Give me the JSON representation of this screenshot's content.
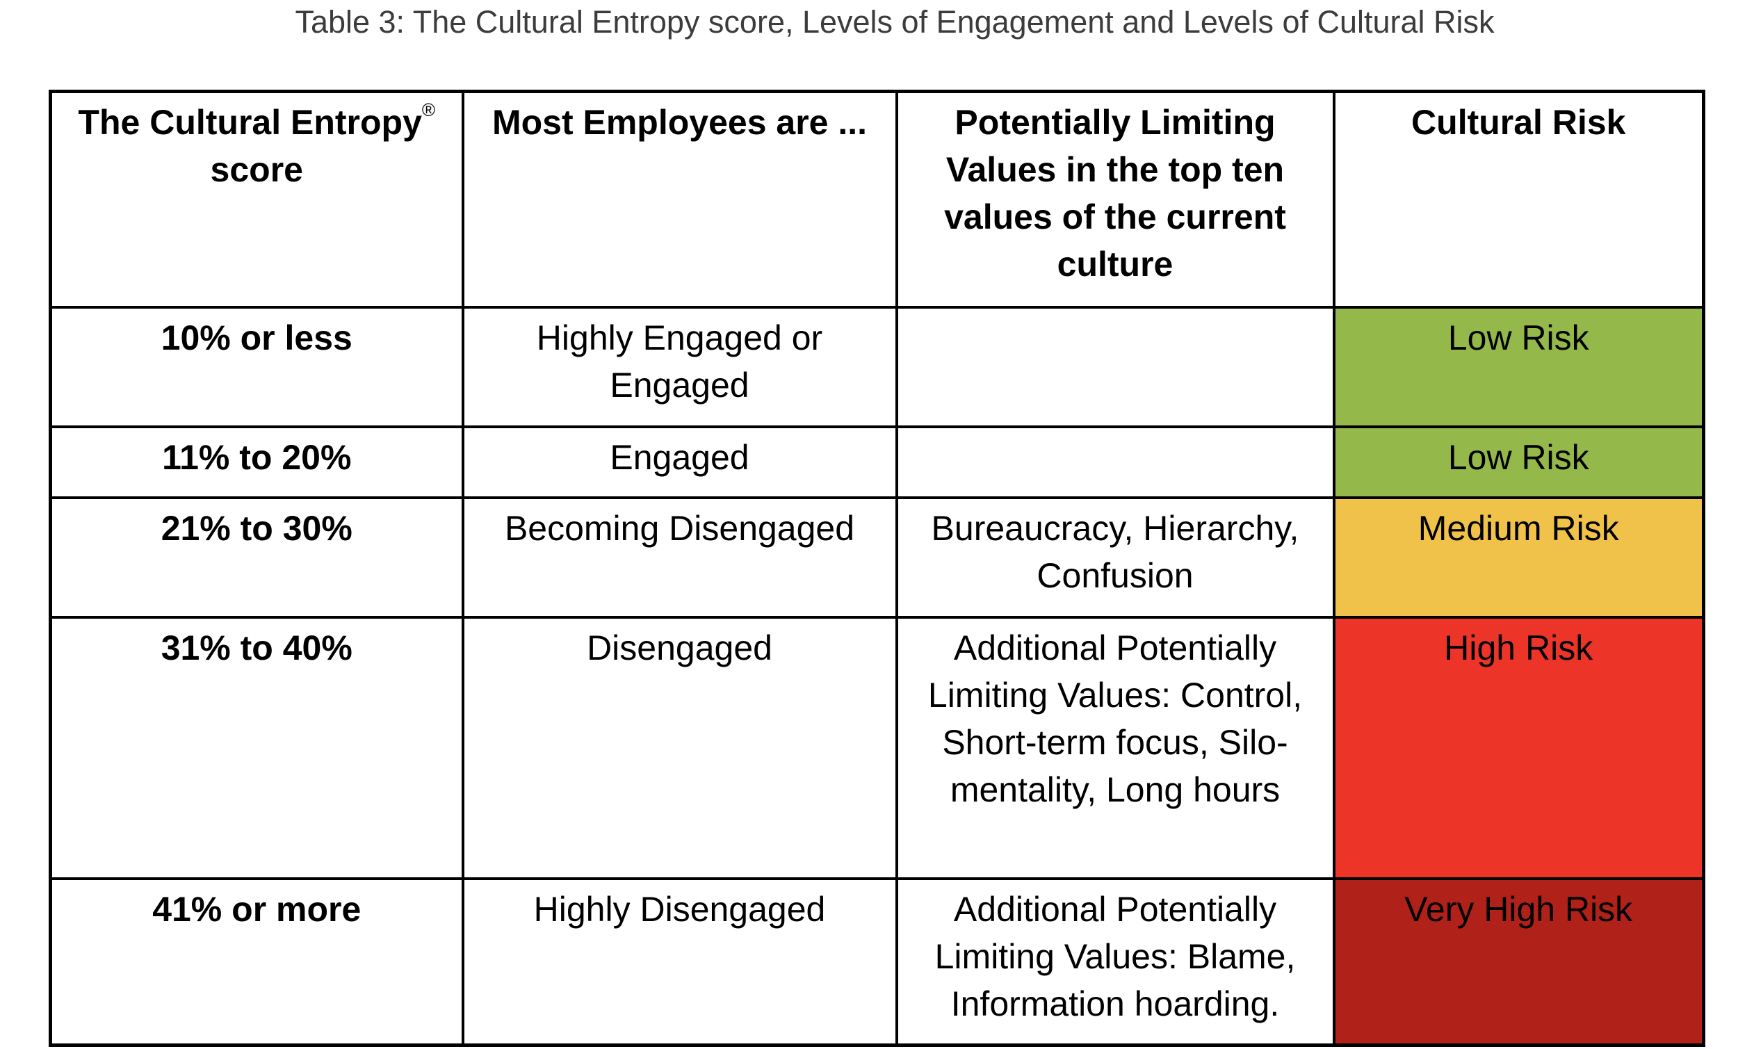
{
  "caption": "Table 3: The Cultural Entropy score, Levels of Engagement and Levels of Cultural Risk",
  "headers": {
    "score": "The Cultural Entropy",
    "score_mark": "®",
    "score_line2": "score",
    "employees": "Most Employees are ...",
    "limiting_values": "Potentially Limiting Values in the top ten values of the current culture",
    "risk": "Cultural Risk"
  },
  "rows": [
    {
      "score": "10% or less",
      "employees": "Highly Engaged or Engaged",
      "limiting_values": "",
      "risk": "Low Risk",
      "risk_color": "#94b84a"
    },
    {
      "score": "11% to 20%",
      "employees": "Engaged",
      "limiting_values": "",
      "risk": "Low Risk",
      "risk_color": "#94b84a"
    },
    {
      "score": "21% to 30%",
      "employees": "Becoming Disengaged",
      "limiting_values": "Bureaucracy, Hierarchy, Confusion",
      "risk": "Medium Risk",
      "risk_color": "#f0c249"
    },
    {
      "score": "31% to 40%",
      "employees": "Disengaged",
      "limiting_values": "Additional Potentially Limiting Values: Control, Short-term focus, Silo-mentality, Long hours",
      "risk": "High Risk",
      "risk_color": "#ec3528"
    },
    {
      "score": "41% or more",
      "employees": "Highly Disengaged",
      "limiting_values": "Additional Potentially Limiting Values: Blame, Information hoarding.",
      "risk": "Very High Risk",
      "risk_color": "#b02119"
    }
  ]
}
